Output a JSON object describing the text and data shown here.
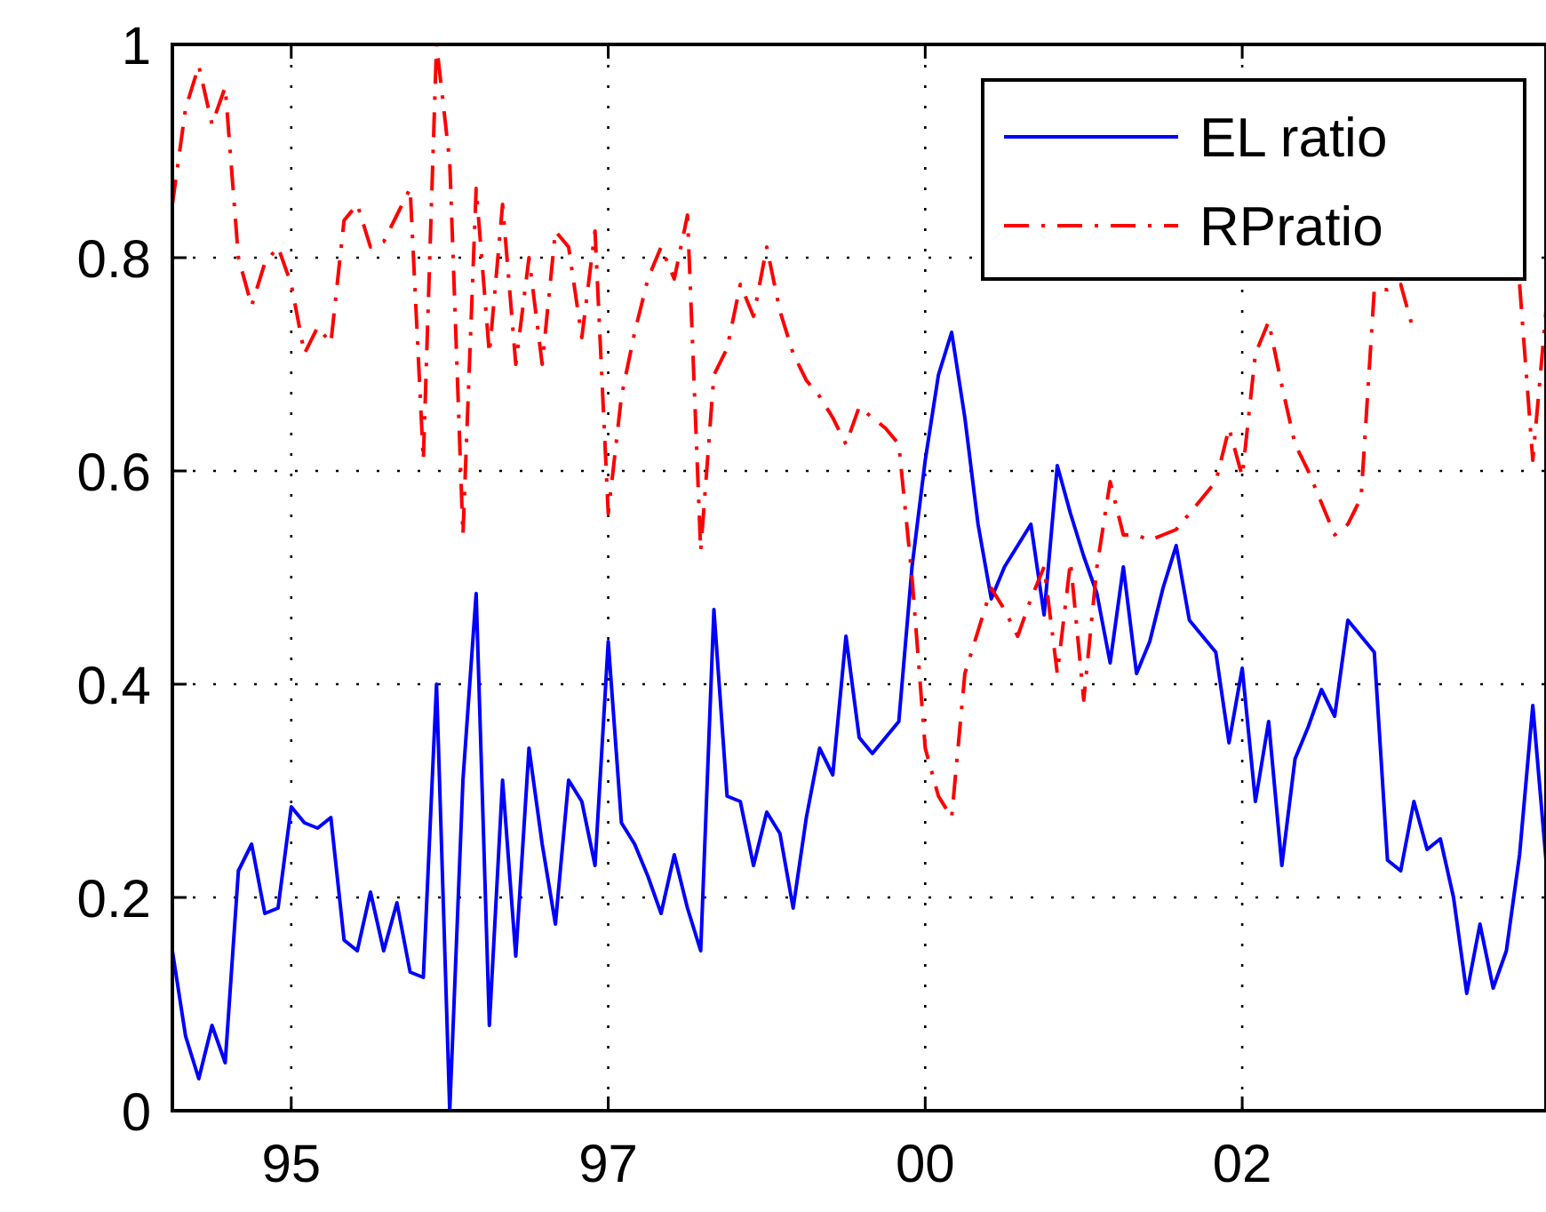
{
  "chart_data": {
    "type": "line",
    "categories": [
      null,
      null,
      null,
      null,
      null,
      null,
      null,
      null,
      null,
      "95",
      null,
      null,
      null,
      null,
      null,
      null,
      null,
      null,
      null,
      null,
      null,
      null,
      null,
      null,
      null,
      null,
      null,
      null,
      null,
      null,
      null,
      null,
      null,
      "97",
      null,
      null,
      null,
      null,
      null,
      null,
      null,
      null,
      null,
      null,
      null,
      null,
      null,
      null,
      null,
      null,
      null,
      null,
      null,
      null,
      null,
      null,
      null,
      "00",
      null,
      null,
      null,
      null,
      null,
      null,
      null,
      null,
      null,
      null,
      null,
      null,
      null,
      null,
      null,
      null,
      null,
      null,
      null,
      null,
      null,
      null,
      null,
      "02",
      null,
      null,
      null,
      null,
      null,
      null,
      null,
      null,
      null,
      null,
      null,
      null,
      null,
      null,
      null,
      null,
      null,
      null,
      null,
      null,
      null,
      null,
      null
    ],
    "ylim": [
      0,
      1
    ],
    "yticks": [
      0,
      0.2,
      0.4,
      0.6,
      0.8,
      1
    ],
    "grid": true,
    "legend": "top right",
    "series": [
      {
        "name": "EL ratio",
        "color": "#0000ff",
        "line_style": "solid",
        "values": [
          0.15,
          0.07,
          0.03,
          0.08,
          0.045,
          0.225,
          0.25,
          0.185,
          0.19,
          0.285,
          0.27,
          0.265,
          0.275,
          0.16,
          0.15,
          0.205,
          0.15,
          0.195,
          0.13,
          0.125,
          0.4,
          0,
          0.31,
          0.485,
          0.08,
          0.31,
          0.145,
          0.34,
          0.25,
          0.175,
          0.31,
          0.29,
          0.23,
          0.44,
          0.27,
          0.25,
          0.22,
          0.185,
          0.24,
          0.19,
          0.15,
          0.47,
          0.295,
          0.29,
          0.23,
          0.28,
          0.26,
          0.19,
          0.275,
          0.34,
          0.315,
          0.445,
          0.35,
          0.335,
          0.35,
          0.365,
          0.51,
          0.61,
          0.69,
          0.73,
          0.65,
          0.55,
          0.48,
          0.51,
          0.53,
          0.55,
          0.465,
          0.605,
          0.56,
          0.52,
          0.485,
          0.42,
          0.51,
          0.41,
          0.44,
          0.49,
          0.53,
          0.46,
          0.445,
          0.43,
          0.345,
          0.415,
          0.29,
          0.365,
          0.23,
          0.33,
          0.36,
          0.395,
          0.37,
          0.46,
          0.445,
          0.43,
          0.235,
          0.225,
          0.29,
          0.245,
          0.255,
          0.2,
          0.11,
          0.175,
          0.115,
          0.15,
          0.24,
          0.38,
          0.235
        ]
      },
      {
        "name": "RPratio",
        "color": "#ff0000",
        "line_style": "dashed",
        "values": [
          0.85,
          0.94,
          0.98,
          0.925,
          0.96,
          0.8,
          0.755,
          0.795,
          0.81,
          0.775,
          0.71,
          0.735,
          0.72,
          0.835,
          0.85,
          0.81,
          0.815,
          0.84,
          0.865,
          0.61,
          1,
          0.89,
          0.54,
          0.865,
          0.71,
          0.85,
          0.7,
          0.8,
          0.7,
          0.825,
          0.81,
          0.725,
          0.825,
          0.56,
          0.67,
          0.73,
          0.78,
          0.81,
          0.78,
          0.84,
          0.525,
          0.69,
          0.715,
          0.775,
          0.745,
          0.81,
          0.75,
          0.71,
          0.685,
          0.67,
          0.65,
          0.625,
          0.66,
          0.65,
          0.64,
          0.625,
          0.5,
          0.34,
          0.295,
          0.275,
          0.41,
          0.45,
          0.49,
          0.47,
          0.445,
          0.48,
          0.51,
          0.41,
          0.515,
          0.385,
          0.51,
          0.59,
          0.54,
          0.54,
          0.535,
          0.54,
          0.545,
          0.56,
          0.575,
          0.59,
          0.64,
          0.595,
          0.71,
          0.74,
          0.68,
          0.625,
          0.6,
          0.57,
          0.54,
          0.55,
          0.575,
          0.77,
          0.77,
          0.775,
          0.73,
          null,
          null,
          null,
          null,
          null,
          null,
          null,
          0.775,
          0.61,
          0.75
        ]
      }
    ]
  }
}
